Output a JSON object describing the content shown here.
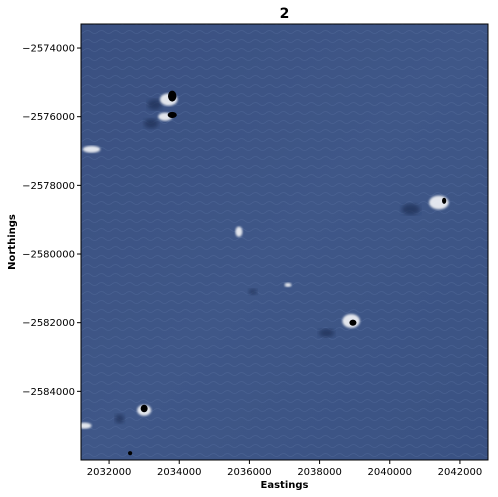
{
  "chart_data": {
    "type": "heatmap",
    "title": "2",
    "xlabel": "Eastings",
    "ylabel": "Northings",
    "xlim": [
      2031200,
      2042800
    ],
    "ylim": [
      -2586000,
      -2573300
    ],
    "xticks": [
      2032000,
      2034000,
      2036000,
      2038000,
      2040000,
      2042000
    ],
    "yticks": [
      -2574000,
      -2576000,
      -2578000,
      -2580000,
      -2582000,
      -2584000
    ],
    "xtick_labels": [
      "2032000",
      "2034000",
      "2036000",
      "2038000",
      "2040000",
      "2042000"
    ],
    "ytick_labels": [
      "−2574000",
      "−2576000",
      "−2578000",
      "−2580000",
      "−2582000",
      "−2584000"
    ],
    "grid": false,
    "background_color": "#3d5584",
    "features": [
      {
        "kind": "white-cloud",
        "x": 2033700,
        "y": -2575500,
        "rx": 250,
        "ry": 180
      },
      {
        "kind": "white-cloud",
        "x": 2033600,
        "y": -2576000,
        "rx": 200,
        "ry": 120
      },
      {
        "kind": "white-cloud",
        "x": 2031500,
        "y": -2576950,
        "rx": 250,
        "ry": 100
      },
      {
        "kind": "white-cloud",
        "x": 2041400,
        "y": -2578500,
        "rx": 280,
        "ry": 200
      },
      {
        "kind": "white-cloud",
        "x": 2035700,
        "y": -2579350,
        "rx": 100,
        "ry": 150
      },
      {
        "kind": "white-cloud",
        "x": 2038900,
        "y": -2581950,
        "rx": 250,
        "ry": 200
      },
      {
        "kind": "white-cloud",
        "x": 2033000,
        "y": -2584550,
        "rx": 200,
        "ry": 160
      },
      {
        "kind": "white-cloud",
        "x": 2031300,
        "y": -2585000,
        "rx": 200,
        "ry": 90
      },
      {
        "kind": "white-cloud",
        "x": 2037100,
        "y": -2580900,
        "rx": 100,
        "ry": 60
      },
      {
        "kind": "black-blob",
        "x": 2033800,
        "y": -2575400,
        "rx": 120,
        "ry": 160
      },
      {
        "kind": "black-blob",
        "x": 2033800,
        "y": -2575950,
        "rx": 130,
        "ry": 90
      },
      {
        "kind": "black-blob",
        "x": 2041550,
        "y": -2578450,
        "rx": 60,
        "ry": 90
      },
      {
        "kind": "black-blob",
        "x": 2038950,
        "y": -2582000,
        "rx": 100,
        "ry": 90
      },
      {
        "kind": "black-blob",
        "x": 2033000,
        "y": -2584500,
        "rx": 100,
        "ry": 110
      },
      {
        "kind": "black-blob",
        "x": 2032600,
        "y": -2585800,
        "rx": 60,
        "ry": 60
      },
      {
        "kind": "shadow",
        "x": 2033300,
        "y": -2575650,
        "rx": 200,
        "ry": 150
      },
      {
        "kind": "shadow",
        "x": 2033200,
        "y": -2576200,
        "rx": 200,
        "ry": 140
      },
      {
        "kind": "shadow",
        "x": 2040600,
        "y": -2578700,
        "rx": 260,
        "ry": 160
      },
      {
        "kind": "shadow",
        "x": 2038200,
        "y": -2582300,
        "rx": 220,
        "ry": 120
      },
      {
        "kind": "shadow",
        "x": 2032300,
        "y": -2584800,
        "rx": 130,
        "ry": 130
      },
      {
        "kind": "shadow",
        "x": 2036100,
        "y": -2581100,
        "rx": 120,
        "ry": 80
      }
    ]
  }
}
